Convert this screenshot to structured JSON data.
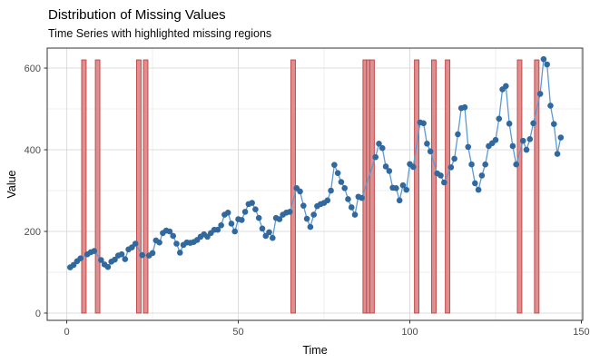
{
  "header": {
    "title": "Distribution of Missing Values",
    "subtitle": "Time Series with highlighted missing regions"
  },
  "chart_data": {
    "type": "line",
    "title": "Distribution of Missing Values",
    "subtitle": "Time Series with highlighted missing regions",
    "xlabel": "Time",
    "ylabel": "Value",
    "xlim": [
      -5.7,
      150.4
    ],
    "ylim": [
      -17.8,
      649
    ],
    "x_ticks": [
      0,
      50,
      100,
      150
    ],
    "y_ticks": [
      0,
      200,
      400,
      600
    ],
    "x_tick_labels": [
      "0",
      "50",
      "100",
      "150"
    ],
    "y_tick_labels": [
      "0",
      "200",
      "400",
      "600"
    ],
    "x_minor_ticks": [
      25,
      75,
      125
    ],
    "y_minor_ticks": [
      100,
      300,
      500
    ],
    "grid": "on",
    "legend": "none",
    "series": [
      {
        "name": "time-series",
        "points": [
          [
            1,
            112
          ],
          [
            2,
            118
          ],
          [
            3,
            127
          ],
          [
            4,
            134
          ],
          [
            6,
            144
          ],
          [
            7,
            149
          ],
          [
            8,
            152
          ],
          [
            10,
            130
          ],
          [
            11,
            119
          ],
          [
            12,
            113
          ],
          [
            13,
            126
          ],
          [
            14,
            131
          ],
          [
            15,
            141
          ],
          [
            16,
            144
          ],
          [
            17,
            132
          ],
          [
            18,
            156
          ],
          [
            19,
            161
          ],
          [
            20,
            170
          ],
          [
            22,
            142
          ],
          [
            24,
            141
          ],
          [
            25,
            147
          ],
          [
            26,
            178
          ],
          [
            27,
            173
          ],
          [
            28,
            196
          ],
          [
            29,
            202
          ],
          [
            30,
            200
          ],
          [
            31,
            189
          ],
          [
            32,
            170
          ],
          [
            33,
            148
          ],
          [
            34,
            167
          ],
          [
            35,
            173
          ],
          [
            36,
            172
          ],
          [
            37,
            174
          ],
          [
            38,
            179
          ],
          [
            39,
            187
          ],
          [
            40,
            193
          ],
          [
            41,
            187
          ],
          [
            42,
            196
          ],
          [
            43,
            204
          ],
          [
            44,
            204
          ],
          [
            45,
            215
          ],
          [
            46,
            241
          ],
          [
            47,
            246
          ],
          [
            48,
            219
          ],
          [
            49,
            200
          ],
          [
            50,
            230
          ],
          [
            51,
            228
          ],
          [
            52,
            248
          ],
          [
            53,
            267
          ],
          [
            54,
            270
          ],
          [
            55,
            254
          ],
          [
            56,
            233
          ],
          [
            57,
            207
          ],
          [
            58,
            189
          ],
          [
            59,
            198
          ],
          [
            60,
            184
          ],
          [
            61,
            233
          ],
          [
            62,
            230
          ],
          [
            63,
            241
          ],
          [
            64,
            246
          ],
          [
            65,
            248
          ],
          [
            67,
            306
          ],
          [
            68,
            298
          ],
          [
            69,
            263
          ],
          [
            70,
            231
          ],
          [
            71,
            211
          ],
          [
            72,
            241
          ],
          [
            73,
            262
          ],
          [
            74,
            267
          ],
          [
            75,
            270
          ],
          [
            76,
            276
          ],
          [
            77,
            300
          ],
          [
            78,
            363
          ],
          [
            79,
            343
          ],
          [
            80,
            321
          ],
          [
            81,
            306
          ],
          [
            82,
            279
          ],
          [
            83,
            259
          ],
          [
            84,
            241
          ],
          [
            85,
            285
          ],
          [
            86,
            282
          ],
          [
            90,
            382
          ],
          [
            91,
            415
          ],
          [
            92,
            404
          ],
          [
            93,
            359
          ],
          [
            94,
            348
          ],
          [
            95,
            307
          ],
          [
            96,
            306
          ],
          [
            97,
            276
          ],
          [
            98,
            313
          ],
          [
            99,
            302
          ],
          [
            100,
            365
          ],
          [
            101,
            358
          ],
          [
            103,
            467
          ],
          [
            104,
            465
          ],
          [
            105,
            415
          ],
          [
            106,
            396
          ],
          [
            108,
            342
          ],
          [
            109,
            337
          ],
          [
            110,
            320
          ],
          [
            112,
            357
          ],
          [
            113,
            378
          ],
          [
            114,
            438
          ],
          [
            115,
            502
          ],
          [
            116,
            504
          ],
          [
            117,
            407
          ],
          [
            118,
            364
          ],
          [
            119,
            318
          ],
          [
            120,
            302
          ],
          [
            121,
            337
          ],
          [
            122,
            364
          ],
          [
            123,
            409
          ],
          [
            124,
            416
          ],
          [
            125,
            424
          ],
          [
            126,
            476
          ],
          [
            127,
            548
          ],
          [
            128,
            556
          ],
          [
            129,
            464
          ],
          [
            130,
            409
          ],
          [
            131,
            364
          ],
          [
            133,
            422
          ],
          [
            134,
            400
          ],
          [
            135,
            426
          ],
          [
            136,
            465
          ],
          [
            138,
            537
          ],
          [
            139,
            622
          ],
          [
            140,
            609
          ],
          [
            141,
            508
          ],
          [
            142,
            463
          ],
          [
            143,
            390
          ],
          [
            144,
            430
          ]
        ]
      }
    ],
    "missing_regions": {
      "x_positions": [
        5,
        9,
        21,
        23,
        66,
        87,
        88,
        89,
        102,
        107,
        111,
        132,
        137
      ],
      "bar_bottom": 0,
      "bar_top": 620,
      "bar_width_units": 1.3
    },
    "colors": {
      "point": "#31699f",
      "line": "#5b9bd5",
      "missing_fill": "#de8f8f",
      "missing_stroke": "#c34a4a",
      "grid_major": "#dcdcdc",
      "grid_minor": "#efefef",
      "panel_border": "#333333",
      "tick": "#333333"
    }
  }
}
